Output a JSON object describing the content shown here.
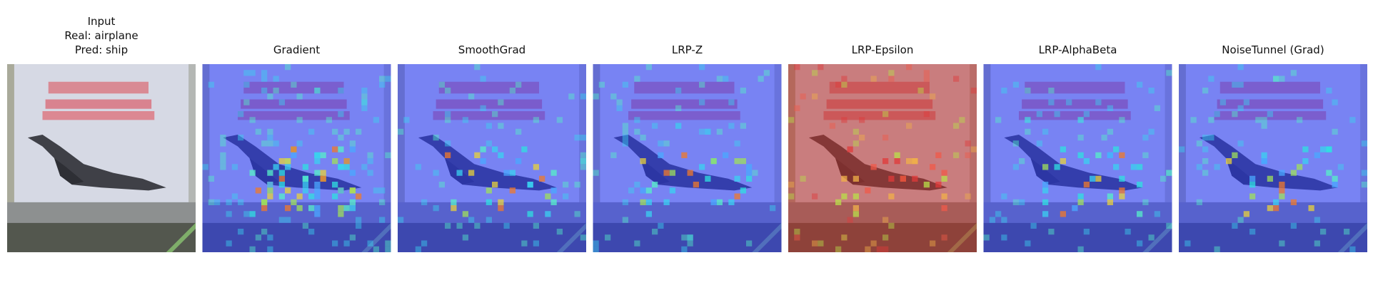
{
  "panels": [
    {
      "title": [
        "Input",
        "Real: airplane",
        "Pred: ship"
      ]
    },
    {
      "title": [
        "Gradient"
      ]
    },
    {
      "title": [
        "SmoothGrad"
      ]
    },
    {
      "title": [
        "LRP-Z"
      ]
    },
    {
      "title": [
        "LRP-Epsilon"
      ]
    },
    {
      "title": [
        "LRP-AlphaBeta"
      ]
    },
    {
      "title": [
        "NoiseTunnel (Grad)"
      ]
    }
  ]
}
